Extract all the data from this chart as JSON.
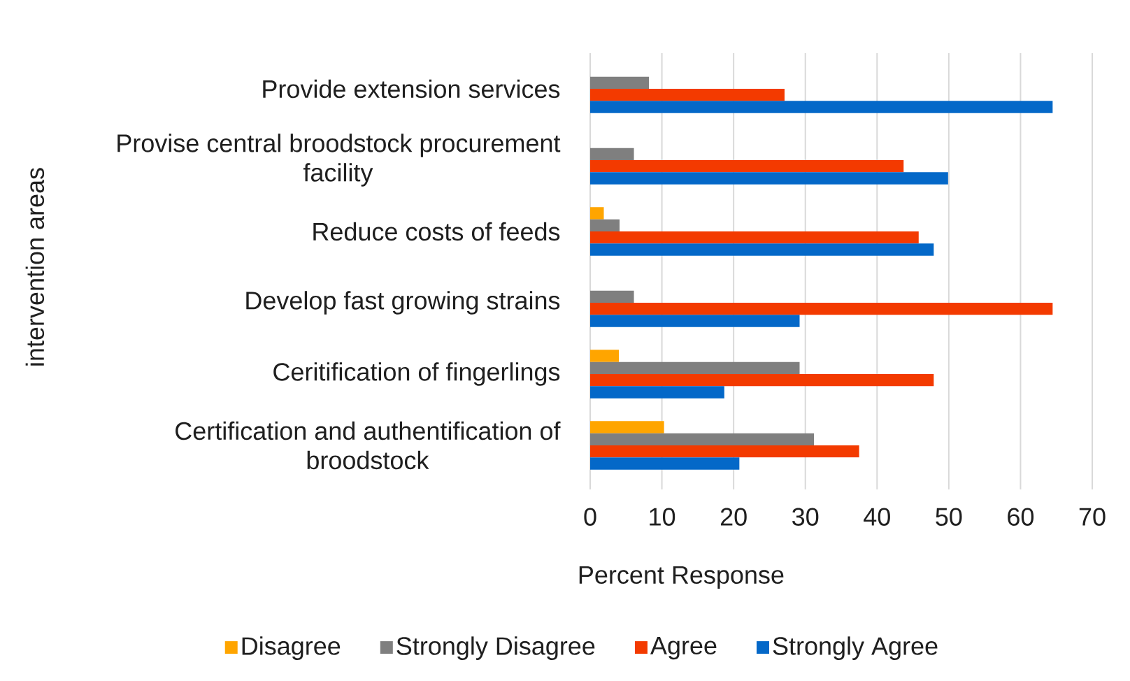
{
  "chart_data": {
    "type": "bar",
    "orientation": "horizontal",
    "xlabel": "Percent Response",
    "ylabel": "intervention areas",
    "categories": [
      "Provide extension services",
      "Provise central broodstock procurement facility",
      "Reduce costs of feeds",
      "Develop fast growing strains",
      "Ceritification of fingerlings",
      "Certification and authentification of broodstock"
    ],
    "series": [
      {
        "name": "Disagree",
        "color": "#ffa500",
        "values": [
          null,
          null,
          1.9,
          null,
          4.0,
          10.3
        ]
      },
      {
        "name": "Strongly Disagree",
        "color": "#7f7f7f",
        "values": [
          8.2,
          6.1,
          4.1,
          6.1,
          29.2,
          31.2
        ]
      },
      {
        "name": "Agree",
        "color": "#f33a00",
        "values": [
          27.1,
          43.7,
          45.8,
          64.5,
          47.9,
          37.5
        ]
      },
      {
        "name": "Strongly Agree",
        "color": "#0468c8",
        "values": [
          64.5,
          49.9,
          47.9,
          29.2,
          18.7,
          20.8
        ]
      }
    ],
    "xlim": [
      0,
      70
    ],
    "xticks": [
      0,
      10,
      20,
      30,
      40,
      50,
      60,
      70
    ],
    "grid": "x",
    "legend": "bottom"
  }
}
